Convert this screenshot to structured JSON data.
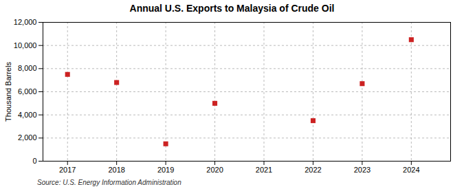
{
  "chart_data": {
    "type": "scatter",
    "title": "Annual U.S. Exports to Malaysia of Crude Oil",
    "ylabel": "Thousand Barrels",
    "source": "Source: U.S. Energy Information Administration",
    "x": [
      2017,
      2018,
      2019,
      2020,
      2021,
      2022,
      2023,
      2024
    ],
    "values": [
      7500,
      6800,
      1500,
      5000,
      null,
      3500,
      6700,
      10500
    ],
    "color": "#cc2222",
    "marker": "square",
    "xlim": [
      2016.5,
      2024.8
    ],
    "xticks": [
      2017,
      2018,
      2019,
      2020,
      2021,
      2022,
      2023,
      2024
    ],
    "ylim": [
      0,
      12000
    ],
    "yticks": [
      0,
      {
        "value": 2000,
        "label": "2,000"
      },
      {
        "value": 4000,
        "label": "4,000"
      },
      {
        "value": 6000,
        "label": "6,000"
      },
      {
        "value": 8000,
        "label": "8,000"
      },
      {
        "value": 10000,
        "label": "10,000"
      },
      {
        "value": 12000,
        "label": "12,000"
      }
    ],
    "grid": true
  }
}
